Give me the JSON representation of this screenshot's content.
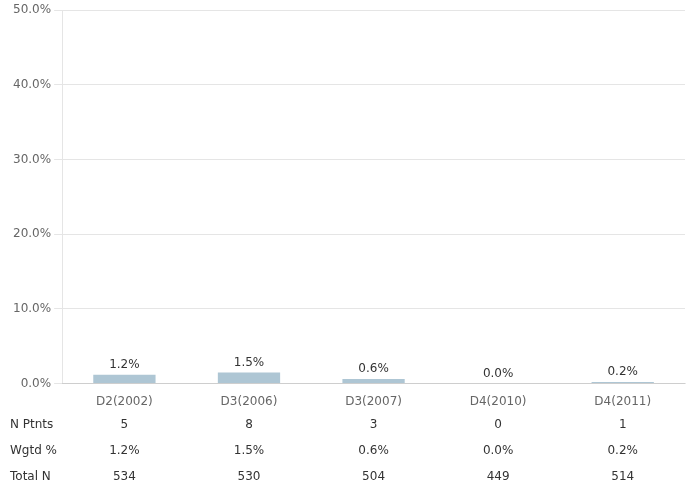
{
  "chart_data": {
    "type": "bar",
    "categories": [
      "D2(2002)",
      "D3(2006)",
      "D3(2007)",
      "D4(2010)",
      "D4(2011)"
    ],
    "values": [
      1.2,
      1.5,
      0.6,
      0.0,
      0.2
    ],
    "value_labels": [
      "1.2%",
      "1.5%",
      "0.6%",
      "0.0%",
      "0.2%"
    ],
    "color": "#aec6d4",
    "ylim": [
      0,
      50.0
    ],
    "yticks": [
      {
        "value": 0,
        "label": "0.0%"
      },
      {
        "value": 10.0,
        "label": "10.0%"
      },
      {
        "value": 20.0,
        "label": "20.0%"
      },
      {
        "value": 30.0,
        "label": "30.0%"
      },
      {
        "value": 40.0,
        "label": "40.0%"
      },
      {
        "value": 50.0,
        "label": "50.0%"
      }
    ],
    "grid": true,
    "table_rows": [
      {
        "name": "N Ptnts",
        "cells": [
          "5",
          "8",
          "3",
          "0",
          "1"
        ]
      },
      {
        "name": "Wgtd %",
        "cells": [
          "1.2%",
          "1.5%",
          "0.6%",
          "0.0%",
          "0.2%"
        ]
      },
      {
        "name": "Total N",
        "cells": [
          "534",
          "530",
          "504",
          "449",
          "514"
        ]
      }
    ]
  }
}
